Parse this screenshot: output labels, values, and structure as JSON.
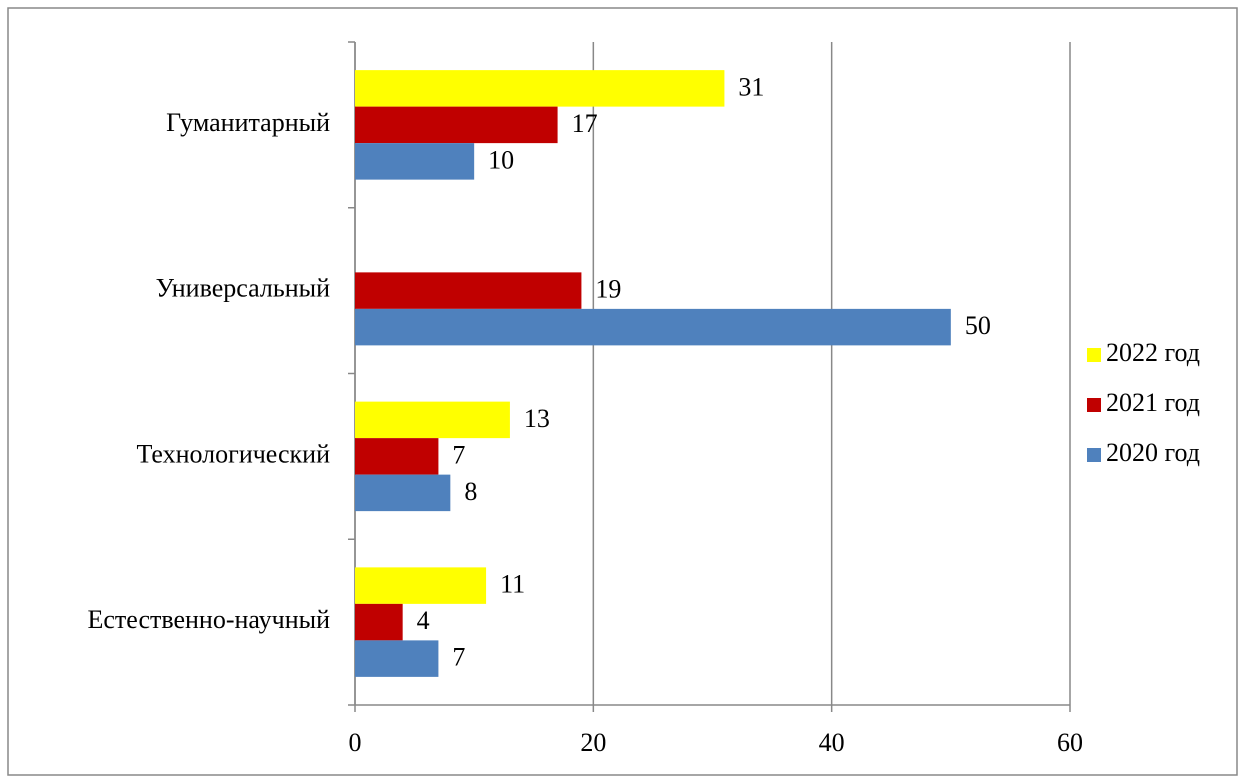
{
  "chart_data": {
    "type": "hbar",
    "categories": [
      "Гуманитарный",
      "Универсальный",
      "Технологический",
      "Естественно-научный"
    ],
    "series": [
      {
        "name": "2022 год",
        "color": "#ffff00",
        "values": [
          31,
          null,
          13,
          11
        ]
      },
      {
        "name": "2021 год",
        "color": "#c00000",
        "values": [
          17,
          19,
          7,
          4
        ]
      },
      {
        "name": "2020 год",
        "color": "#4f81bd",
        "values": [
          10,
          50,
          8,
          7
        ]
      }
    ],
    "xlim": [
      0,
      60
    ],
    "xticks": [
      0,
      20,
      40,
      60
    ],
    "grid": true,
    "legend": "right"
  }
}
